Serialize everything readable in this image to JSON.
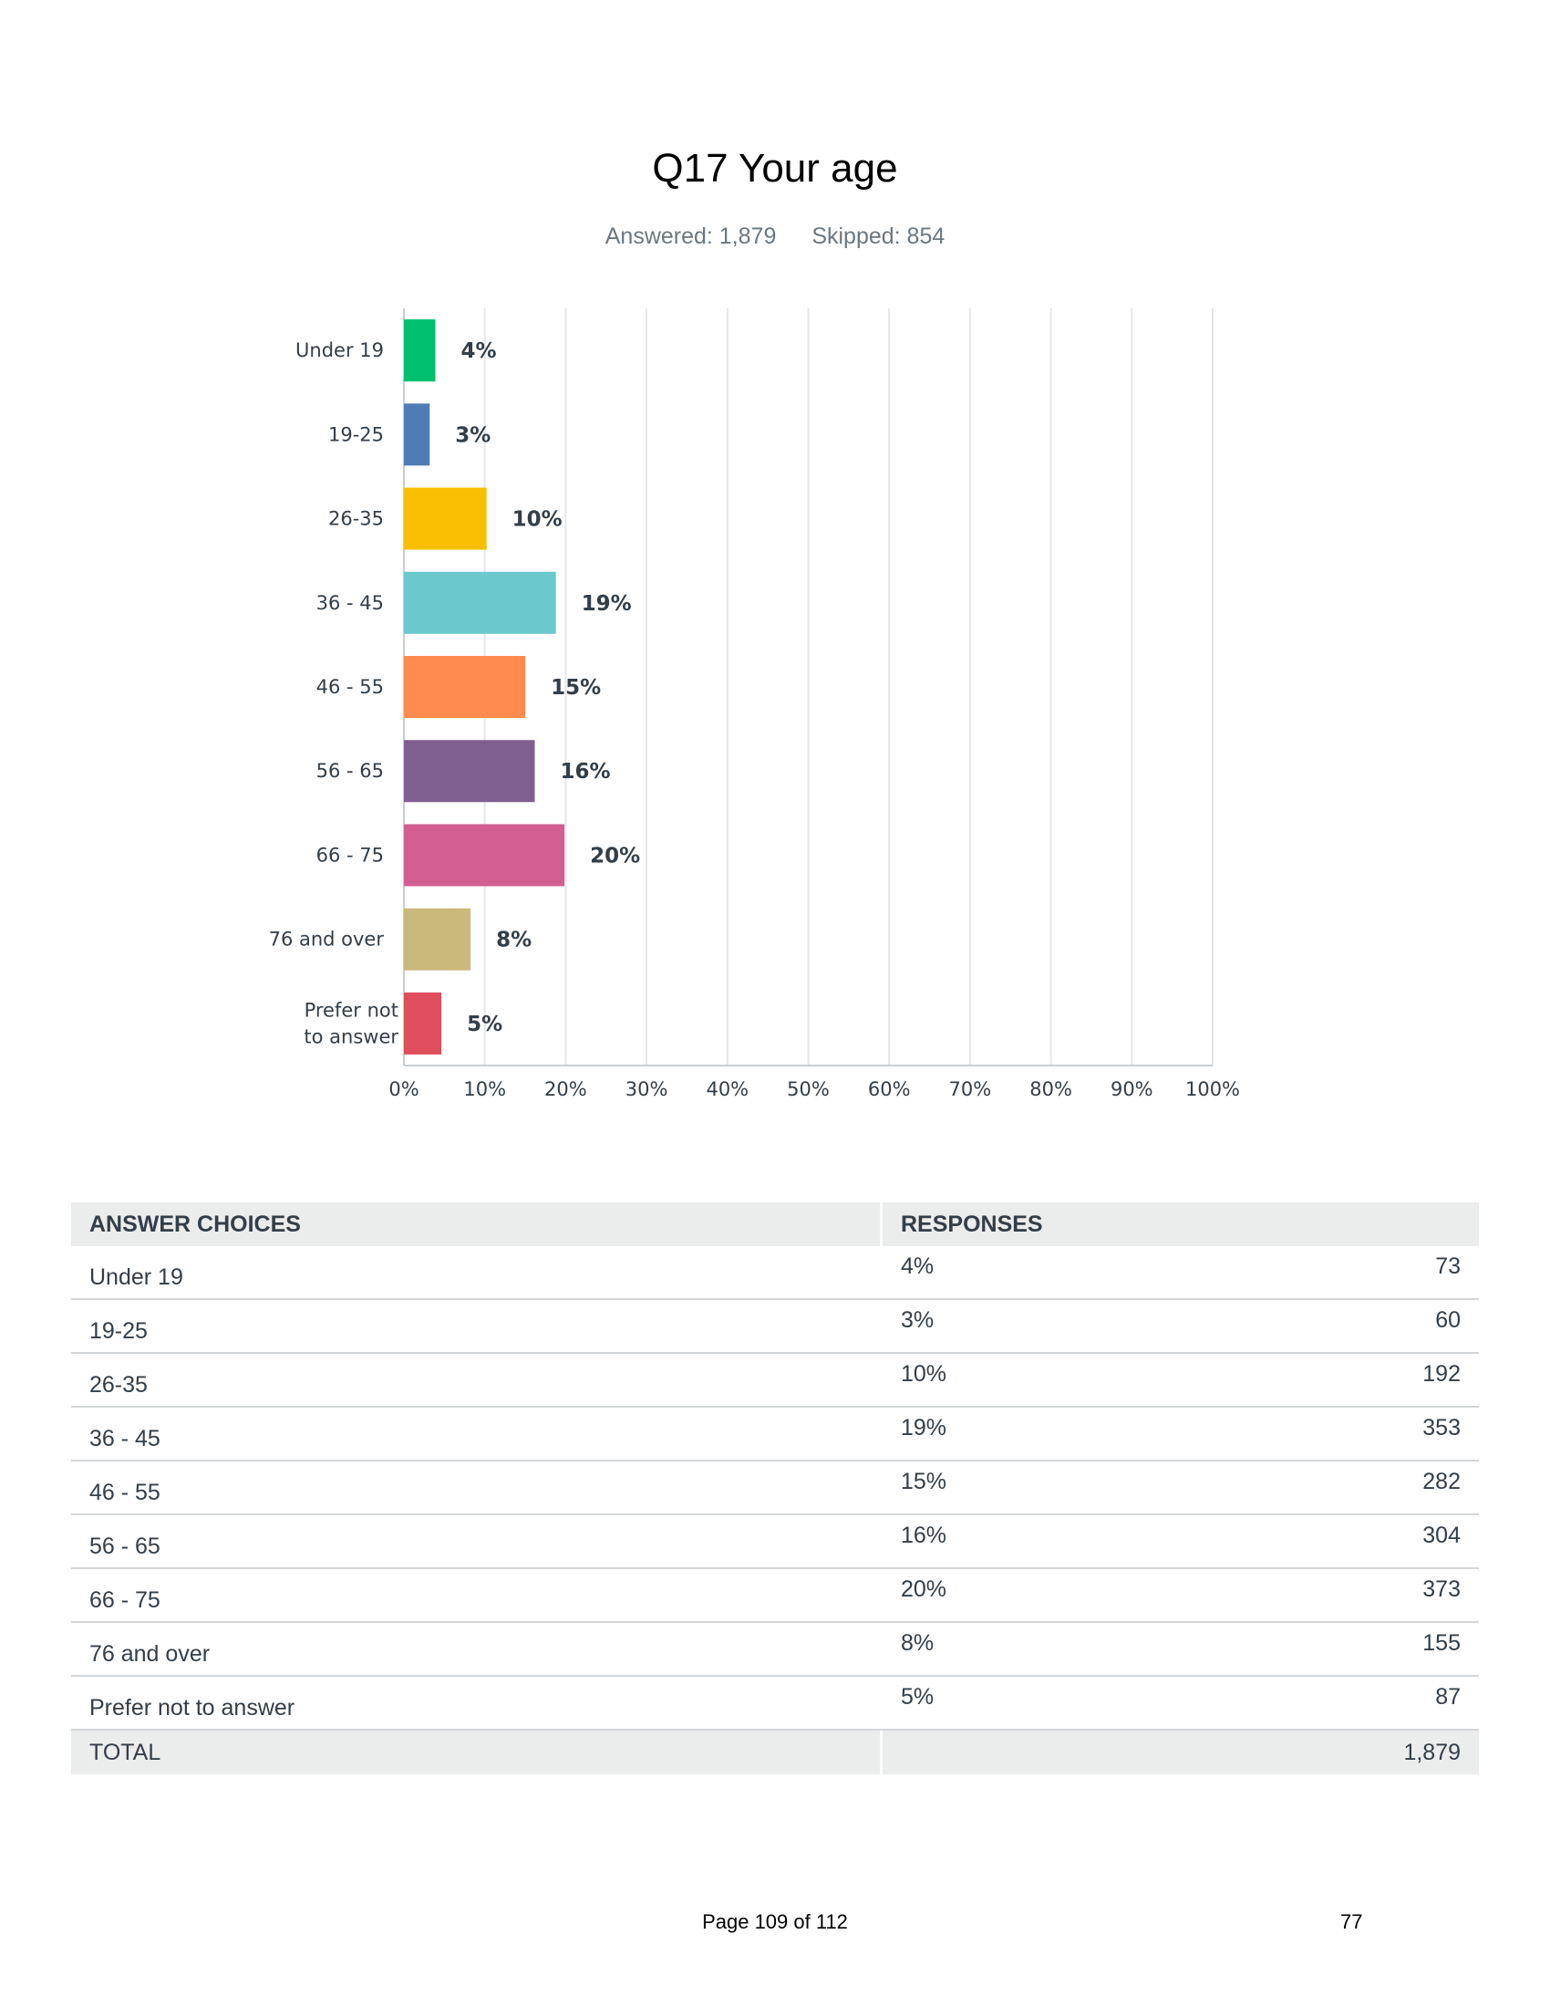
{
  "header": {
    "title": "Q17 Your age",
    "answered": "Answered: 1,879",
    "skipped": "Skipped: 854"
  },
  "chart_data": {
    "type": "bar",
    "orientation": "horizontal",
    "categories": [
      "Under 19",
      "19-25",
      "26-35",
      "36 - 45",
      "46 - 55",
      "56 - 65",
      "66 - 75",
      "76 and over",
      "Prefer not to answer"
    ],
    "values": [
      3.89,
      3.19,
      10.22,
      18.79,
      15.01,
      16.18,
      19.85,
      8.25,
      4.63
    ],
    "value_labels": [
      "4%",
      "3%",
      "10%",
      "19%",
      "15%",
      "16%",
      "20%",
      "8%",
      "5%"
    ],
    "colors": [
      "#00bf6f",
      "#507cb6",
      "#f9be00",
      "#6bc8cd",
      "#ff8b4f",
      "#7f5f90",
      "#d25f90",
      "#c9b97a",
      "#df4e5d"
    ],
    "x_ticks": [
      "0%",
      "10%",
      "20%",
      "30%",
      "40%",
      "50%",
      "60%",
      "70%",
      "80%",
      "90%",
      "100%"
    ],
    "xlim": [
      0,
      100
    ],
    "grid": true
  },
  "table": {
    "headers": [
      "ANSWER CHOICES",
      "RESPONSES"
    ],
    "rows": [
      {
        "choice": "Under 19",
        "pct": "4%",
        "count": "73"
      },
      {
        "choice": "19-25",
        "pct": "3%",
        "count": "60"
      },
      {
        "choice": "26-35",
        "pct": "10%",
        "count": "192"
      },
      {
        "choice": "36 - 45",
        "pct": "19%",
        "count": "353"
      },
      {
        "choice": "46 - 55",
        "pct": "15%",
        "count": "282"
      },
      {
        "choice": "56 - 65",
        "pct": "16%",
        "count": "304"
      },
      {
        "choice": "66 - 75",
        "pct": "20%",
        "count": "373"
      },
      {
        "choice": "76 and over",
        "pct": "8%",
        "count": "155"
      },
      {
        "choice": "Prefer not to answer",
        "pct": "5%",
        "count": "87"
      }
    ],
    "total_label": "TOTAL",
    "total_count": "1,879"
  },
  "footer": {
    "page": "Page 109 of 112",
    "number": "77"
  }
}
